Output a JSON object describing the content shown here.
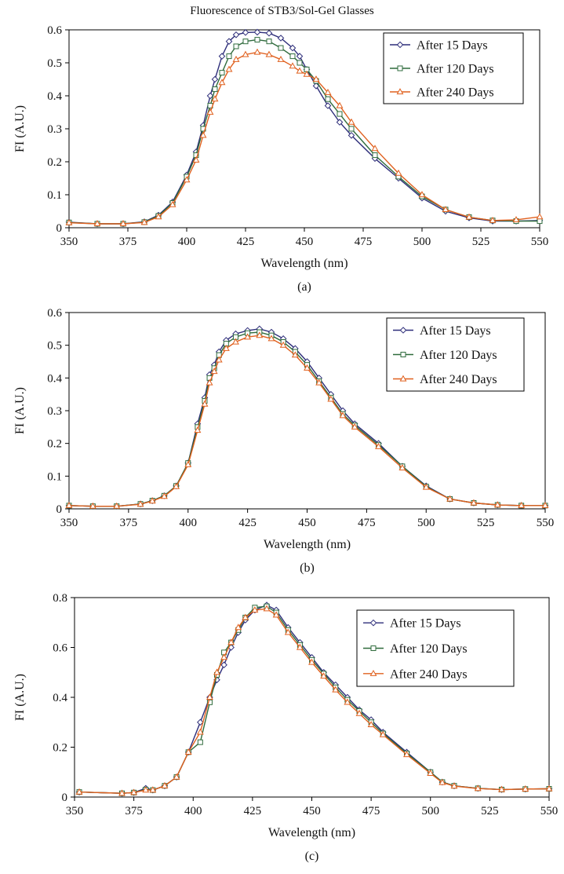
{
  "figure_title": "Fluorescence of STB3/Sol-Gel Glasses",
  "series_styles": [
    {
      "color": "#2e2e7a",
      "marker": "diamond"
    },
    {
      "color": "#2f6b3c",
      "marker": "square"
    },
    {
      "color": "#e0601e",
      "marker": "triangle"
    }
  ],
  "chart_data": [
    {
      "type": "line",
      "panel_label": "(a)",
      "title": "Fluorescence of STB3/Sol-Gel Glasses",
      "xlabel": "Wavelength (nm)",
      "ylabel": "FI (A.U.)",
      "xlim": [
        350,
        550
      ],
      "ylim": [
        0,
        0.6
      ],
      "xticks": [
        350,
        375,
        400,
        425,
        450,
        475,
        500,
        525,
        550
      ],
      "yticks": [
        0,
        0.1,
        0.2,
        0.3,
        0.4,
        0.5,
        0.6
      ],
      "ytick_labels": [
        "0",
        "0.1",
        "0.2",
        "0.3",
        "0.4",
        "0.5",
        "0.6"
      ],
      "legend_position": "top-right",
      "series": [
        {
          "name": "After 15 Days",
          "x": [
            350,
            362,
            373,
            382,
            388,
            394,
            400,
            404,
            407,
            410,
            412,
            415,
            418,
            421,
            425,
            430,
            435,
            440,
            445,
            448,
            451,
            455,
            460,
            465,
            470,
            480,
            490,
            500,
            510,
            520,
            530,
            540,
            550
          ],
          "y": [
            0.017,
            0.012,
            0.012,
            0.018,
            0.038,
            0.078,
            0.16,
            0.23,
            0.31,
            0.4,
            0.45,
            0.52,
            0.565,
            0.585,
            0.592,
            0.593,
            0.59,
            0.575,
            0.545,
            0.52,
            0.48,
            0.43,
            0.37,
            0.32,
            0.28,
            0.21,
            0.15,
            0.09,
            0.05,
            0.03,
            0.02,
            0.02,
            0.022
          ]
        },
        {
          "name": "After 120 Days",
          "x": [
            350,
            362,
            373,
            382,
            388,
            394,
            400,
            404,
            407,
            410,
            412,
            415,
            418,
            421,
            425,
            430,
            435,
            440,
            445,
            448,
            451,
            455,
            460,
            465,
            470,
            480,
            490,
            500,
            510,
            520,
            530,
            540,
            550
          ],
          "y": [
            0.016,
            0.012,
            0.012,
            0.017,
            0.036,
            0.075,
            0.155,
            0.22,
            0.3,
            0.37,
            0.42,
            0.47,
            0.52,
            0.55,
            0.565,
            0.57,
            0.565,
            0.545,
            0.52,
            0.5,
            0.48,
            0.445,
            0.39,
            0.345,
            0.3,
            0.22,
            0.155,
            0.095,
            0.055,
            0.032,
            0.022,
            0.02,
            0.02
          ]
        },
        {
          "name": "After 240 Days",
          "x": [
            350,
            362,
            373,
            382,
            388,
            394,
            400,
            404,
            407,
            410,
            412,
            415,
            418,
            421,
            425,
            430,
            435,
            440,
            445,
            448,
            451,
            455,
            460,
            465,
            470,
            480,
            490,
            500,
            510,
            520,
            530,
            540,
            550
          ],
          "y": [
            0.015,
            0.012,
            0.012,
            0.016,
            0.033,
            0.07,
            0.145,
            0.205,
            0.28,
            0.35,
            0.39,
            0.44,
            0.48,
            0.51,
            0.525,
            0.532,
            0.525,
            0.51,
            0.49,
            0.475,
            0.465,
            0.45,
            0.41,
            0.37,
            0.32,
            0.24,
            0.165,
            0.1,
            0.055,
            0.032,
            0.022,
            0.024,
            0.033
          ]
        }
      ]
    },
    {
      "type": "line",
      "panel_label": "(b)",
      "xlabel": "Wavelength (nm)",
      "ylabel": "FI (A.U.)",
      "xlim": [
        350,
        550
      ],
      "ylim": [
        0,
        0.6
      ],
      "xticks": [
        350,
        375,
        400,
        425,
        450,
        475,
        500,
        525,
        550
      ],
      "yticks": [
        0,
        0.1,
        0.2,
        0.3,
        0.4,
        0.5,
        0.6
      ],
      "ytick_labels": [
        "0",
        "0.1",
        "0.2",
        "0.3",
        "0.4",
        "0.5",
        "0.6"
      ],
      "legend_position": "top-right",
      "series": [
        {
          "name": "After 15 Days",
          "x": [
            350,
            360,
            370,
            380,
            385,
            390,
            395,
            400,
            404,
            407,
            409,
            411,
            413,
            416,
            420,
            425,
            430,
            435,
            440,
            445,
            450,
            455,
            460,
            465,
            470,
            480,
            490,
            500,
            510,
            520,
            530,
            540,
            550
          ],
          "y": [
            0.01,
            0.008,
            0.008,
            0.015,
            0.025,
            0.04,
            0.07,
            0.14,
            0.26,
            0.34,
            0.41,
            0.44,
            0.48,
            0.515,
            0.535,
            0.545,
            0.55,
            0.54,
            0.52,
            0.49,
            0.45,
            0.4,
            0.35,
            0.3,
            0.26,
            0.2,
            0.13,
            0.07,
            0.03,
            0.018,
            0.012,
            0.01,
            0.01
          ]
        },
        {
          "name": "After 120 Days",
          "x": [
            350,
            360,
            370,
            380,
            385,
            390,
            395,
            400,
            404,
            407,
            409,
            411,
            413,
            416,
            420,
            425,
            430,
            435,
            440,
            445,
            450,
            455,
            460,
            465,
            470,
            480,
            490,
            500,
            510,
            520,
            530,
            540,
            550
          ],
          "y": [
            0.01,
            0.008,
            0.008,
            0.015,
            0.025,
            0.04,
            0.07,
            0.14,
            0.25,
            0.33,
            0.4,
            0.43,
            0.47,
            0.505,
            0.525,
            0.537,
            0.54,
            0.53,
            0.51,
            0.48,
            0.44,
            0.39,
            0.34,
            0.29,
            0.255,
            0.195,
            0.13,
            0.068,
            0.03,
            0.018,
            0.012,
            0.01,
            0.01
          ]
        },
        {
          "name": "After 240 Days",
          "x": [
            350,
            360,
            370,
            380,
            385,
            390,
            395,
            400,
            404,
            407,
            409,
            411,
            413,
            416,
            420,
            425,
            430,
            435,
            440,
            445,
            450,
            455,
            460,
            465,
            470,
            480,
            490,
            500,
            510,
            520,
            530,
            540,
            550
          ],
          "y": [
            0.01,
            0.008,
            0.008,
            0.014,
            0.024,
            0.038,
            0.068,
            0.135,
            0.24,
            0.32,
            0.385,
            0.42,
            0.455,
            0.49,
            0.51,
            0.525,
            0.53,
            0.52,
            0.5,
            0.47,
            0.43,
            0.385,
            0.335,
            0.285,
            0.25,
            0.19,
            0.125,
            0.066,
            0.03,
            0.018,
            0.012,
            0.01,
            0.01
          ]
        }
      ]
    },
    {
      "type": "line",
      "panel_label": "(c)",
      "xlabel": "Wavelength (nm)",
      "ylabel": "FI (A.U.)",
      "xlim": [
        350,
        550
      ],
      "ylim": [
        0,
        0.8
      ],
      "xticks": [
        350,
        375,
        400,
        425,
        450,
        475,
        500,
        525,
        550
      ],
      "yticks": [
        0,
        0.2,
        0.4,
        0.6,
        0.8
      ],
      "ytick_labels": [
        "0",
        "0.2",
        "0.4",
        "0.6",
        "0.8"
      ],
      "legend_position": "top-right",
      "series": [
        {
          "name": "After 15 Days",
          "x": [
            352,
            370,
            375,
            380,
            383,
            388,
            393,
            398,
            403,
            407,
            410,
            413,
            416,
            419,
            422,
            426,
            431,
            435,
            440,
            445,
            450,
            455,
            460,
            465,
            470,
            475,
            480,
            490,
            500,
            505,
            510,
            520,
            530,
            540,
            550
          ],
          "y": [
            0.02,
            0.015,
            0.018,
            0.035,
            0.028,
            0.045,
            0.08,
            0.18,
            0.3,
            0.4,
            0.47,
            0.53,
            0.6,
            0.66,
            0.71,
            0.75,
            0.77,
            0.75,
            0.68,
            0.62,
            0.56,
            0.5,
            0.45,
            0.4,
            0.35,
            0.31,
            0.26,
            0.18,
            0.1,
            0.06,
            0.045,
            0.035,
            0.03,
            0.032,
            0.033
          ]
        },
        {
          "name": "After 120 Days",
          "x": [
            352,
            370,
            375,
            380,
            383,
            388,
            393,
            398,
            403,
            407,
            410,
            413,
            416,
            419,
            422,
            426,
            431,
            435,
            440,
            445,
            450,
            455,
            460,
            465,
            470,
            475,
            480,
            490,
            500,
            505,
            510,
            520,
            530,
            540,
            550
          ],
          "y": [
            0.02,
            0.015,
            0.018,
            0.03,
            0.028,
            0.045,
            0.08,
            0.18,
            0.22,
            0.38,
            0.49,
            0.58,
            0.62,
            0.67,
            0.72,
            0.76,
            0.765,
            0.74,
            0.67,
            0.61,
            0.55,
            0.495,
            0.44,
            0.39,
            0.345,
            0.3,
            0.255,
            0.175,
            0.1,
            0.06,
            0.045,
            0.035,
            0.03,
            0.032,
            0.033
          ]
        },
        {
          "name": "After 240 Days",
          "x": [
            352,
            370,
            375,
            380,
            383,
            388,
            393,
            398,
            403,
            407,
            410,
            413,
            416,
            419,
            422,
            426,
            431,
            435,
            440,
            445,
            450,
            455,
            460,
            465,
            470,
            475,
            480,
            490,
            500,
            505,
            510,
            520,
            530,
            540,
            550
          ],
          "y": [
            0.02,
            0.015,
            0.018,
            0.028,
            0.028,
            0.045,
            0.08,
            0.18,
            0.26,
            0.4,
            0.5,
            0.56,
            0.62,
            0.68,
            0.72,
            0.75,
            0.755,
            0.73,
            0.66,
            0.6,
            0.54,
            0.485,
            0.43,
            0.38,
            0.335,
            0.29,
            0.25,
            0.17,
            0.095,
            0.058,
            0.044,
            0.034,
            0.03,
            0.032,
            0.033
          ]
        }
      ]
    }
  ]
}
